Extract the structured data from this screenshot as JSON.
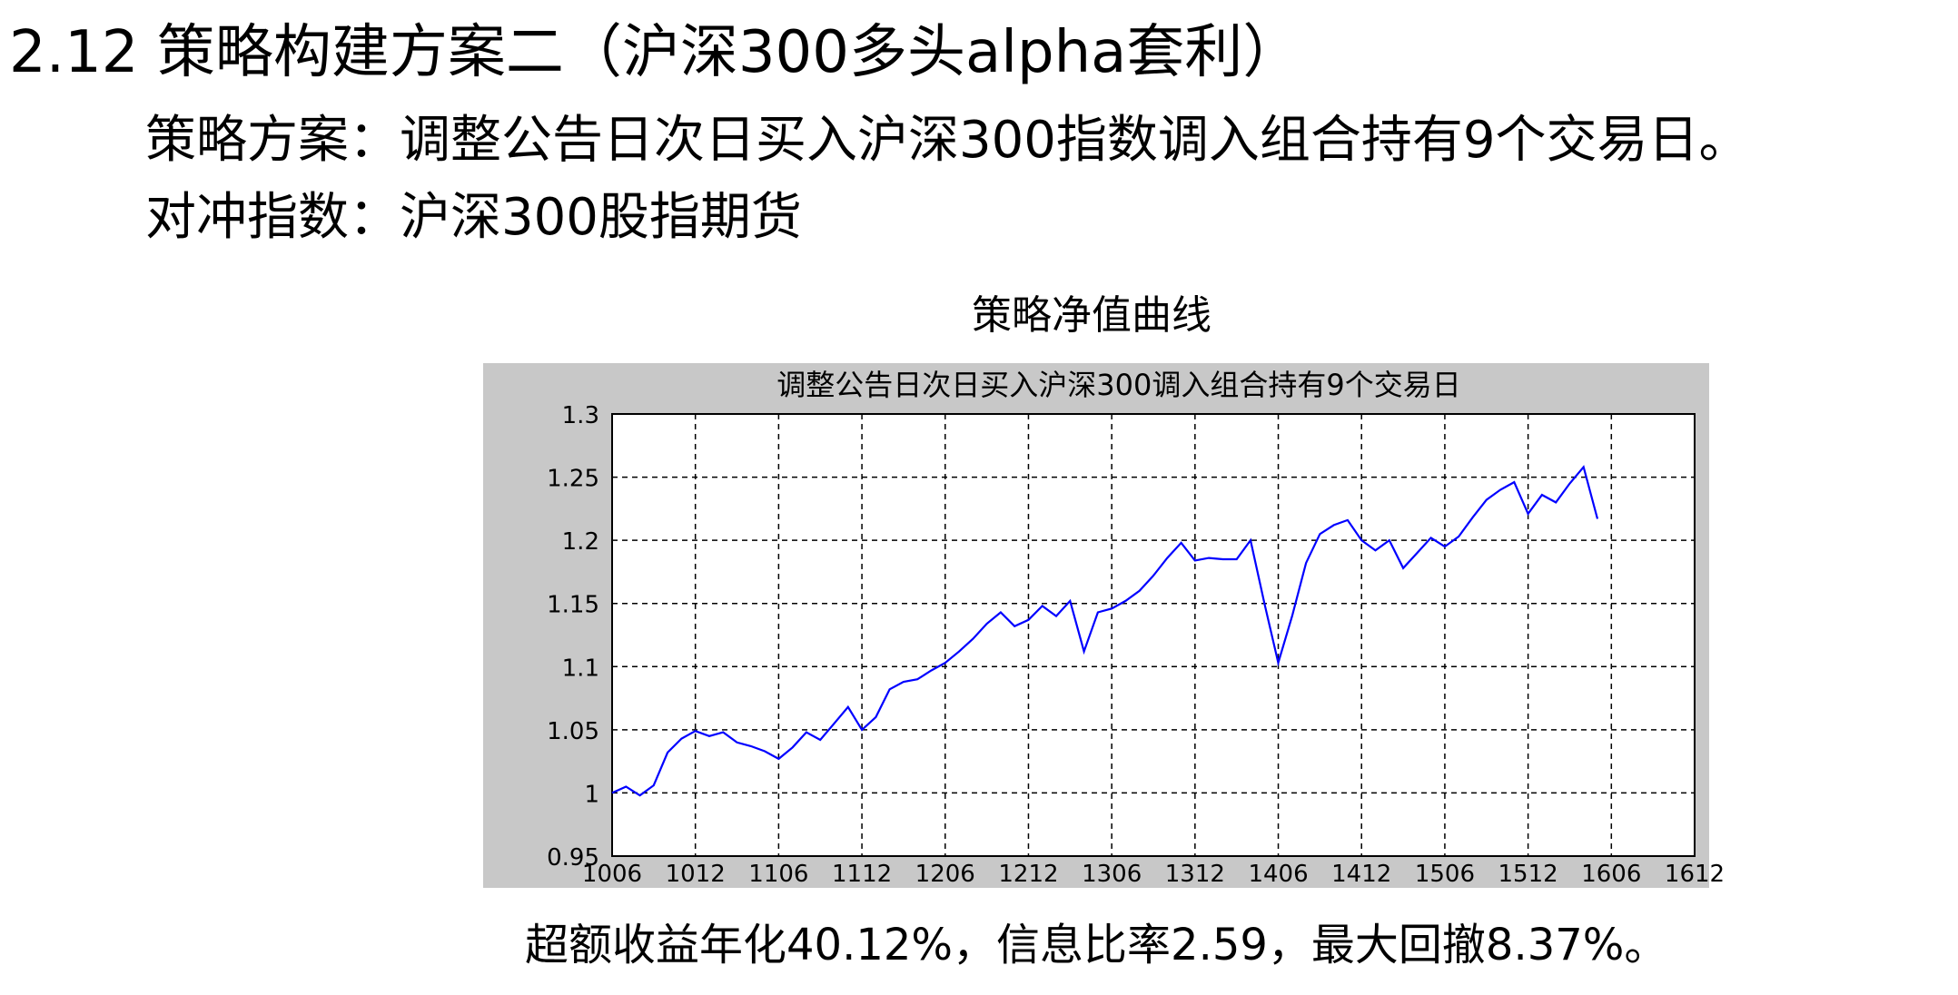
{
  "slide": {
    "title": "2.12 策略构建方案二（沪深300多头alpha套利）",
    "strategy_line": "策略方案：调整公告日次日买入沪深300指数调入组合持有9个交易日。",
    "hedge_line": "对冲指数：沪深300股指期货",
    "chart_caption": "策略净值曲线",
    "summary": "超额收益年化40.12%，信息比率2.59，最大回撤8.37%。"
  },
  "colors": {
    "line": "#0000ff",
    "frame": "#c8c8c8",
    "plot_bg": "#ffffff",
    "grid": "#000000"
  },
  "chart_data": {
    "type": "line",
    "title": "调整公告日次日买入沪深300调入组合持有9个交易日",
    "xlabel": "",
    "ylabel": "",
    "x_ticks": [
      "1006",
      "1012",
      "1106",
      "1112",
      "1206",
      "1212",
      "1306",
      "1312",
      "1406",
      "1412",
      "1506",
      "1512",
      "1606",
      "1612"
    ],
    "y_ticks": [
      "0.95",
      "1",
      "1.05",
      "1.1",
      "1.15",
      "1.2",
      "1.25",
      "1.3"
    ],
    "xlim": [
      0,
      78
    ],
    "ylim": [
      0.95,
      1.3
    ],
    "grid": true,
    "series": [
      {
        "x": [
          0,
          1,
          2,
          3,
          4,
          5,
          6,
          7,
          8,
          9,
          10,
          11,
          12,
          13,
          14,
          15,
          16,
          17,
          18,
          19,
          20,
          21,
          22,
          23,
          24,
          25,
          26,
          27,
          28,
          29,
          30,
          31,
          32,
          33,
          34,
          35,
          36,
          37,
          38,
          39,
          40,
          41,
          42,
          43,
          44,
          45,
          46,
          47,
          48,
          49,
          50,
          51,
          52,
          53,
          54,
          55,
          56,
          57,
          58,
          59,
          60,
          61,
          62,
          63,
          64,
          65,
          66,
          67,
          68,
          69,
          70,
          71
        ],
        "values": [
          1.0,
          1.005,
          0.998,
          1.006,
          1.032,
          1.043,
          1.049,
          1.045,
          1.048,
          1.04,
          1.037,
          1.033,
          1.027,
          1.036,
          1.048,
          1.042,
          1.055,
          1.068,
          1.05,
          1.06,
          1.082,
          1.088,
          1.09,
          1.097,
          1.103,
          1.112,
          1.122,
          1.134,
          1.143,
          1.132,
          1.137,
          1.148,
          1.14,
          1.152,
          1.112,
          1.143,
          1.146,
          1.152,
          1.16,
          1.172,
          1.186,
          1.198,
          1.184,
          1.186,
          1.185,
          1.185,
          1.2,
          1.15,
          1.103,
          1.14,
          1.182,
          1.205,
          1.212,
          1.216,
          1.2,
          1.192,
          1.2,
          1.178,
          1.19,
          1.202,
          1.195,
          1.203,
          1.218,
          1.232,
          1.24,
          1.246,
          1.221,
          1.236,
          1.23,
          1.245,
          1.258,
          1.217
        ]
      }
    ]
  }
}
